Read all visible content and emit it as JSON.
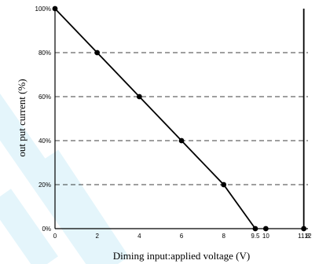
{
  "chart_data": {
    "type": "line",
    "xlabel": "Diming input:applied voltage (V)",
    "ylabel": "out put current (%)",
    "xlim": [
      0,
      12
    ],
    "ylim": [
      0,
      100
    ],
    "x_ticks": [
      0,
      2,
      4,
      6,
      8,
      9.5,
      10,
      11.8,
      12
    ],
    "x_tick_labels": [
      "0",
      "2",
      "4",
      "6",
      "8",
      "9.5",
      "10",
      "11.8",
      "12"
    ],
    "y_ticks": [
      0,
      20,
      40,
      60,
      80,
      100
    ],
    "y_tick_labels": [
      "0%",
      "20%",
      "40%",
      "60%",
      "80%",
      "100%"
    ],
    "grid": "dashed-horizontal",
    "series": [
      {
        "x": [
          0,
          2,
          4,
          6,
          8,
          9.5
        ],
        "y": [
          100,
          80,
          60,
          40,
          20,
          0
        ]
      }
    ],
    "extra_points": [
      {
        "x": 10,
        "y": 0
      },
      {
        "x": 11.8,
        "y": 0
      }
    ],
    "vertical_line_x": 11.8,
    "colors": {
      "line": "#000000",
      "grid": "#000000",
      "watermark": "#e4f5fb"
    }
  }
}
